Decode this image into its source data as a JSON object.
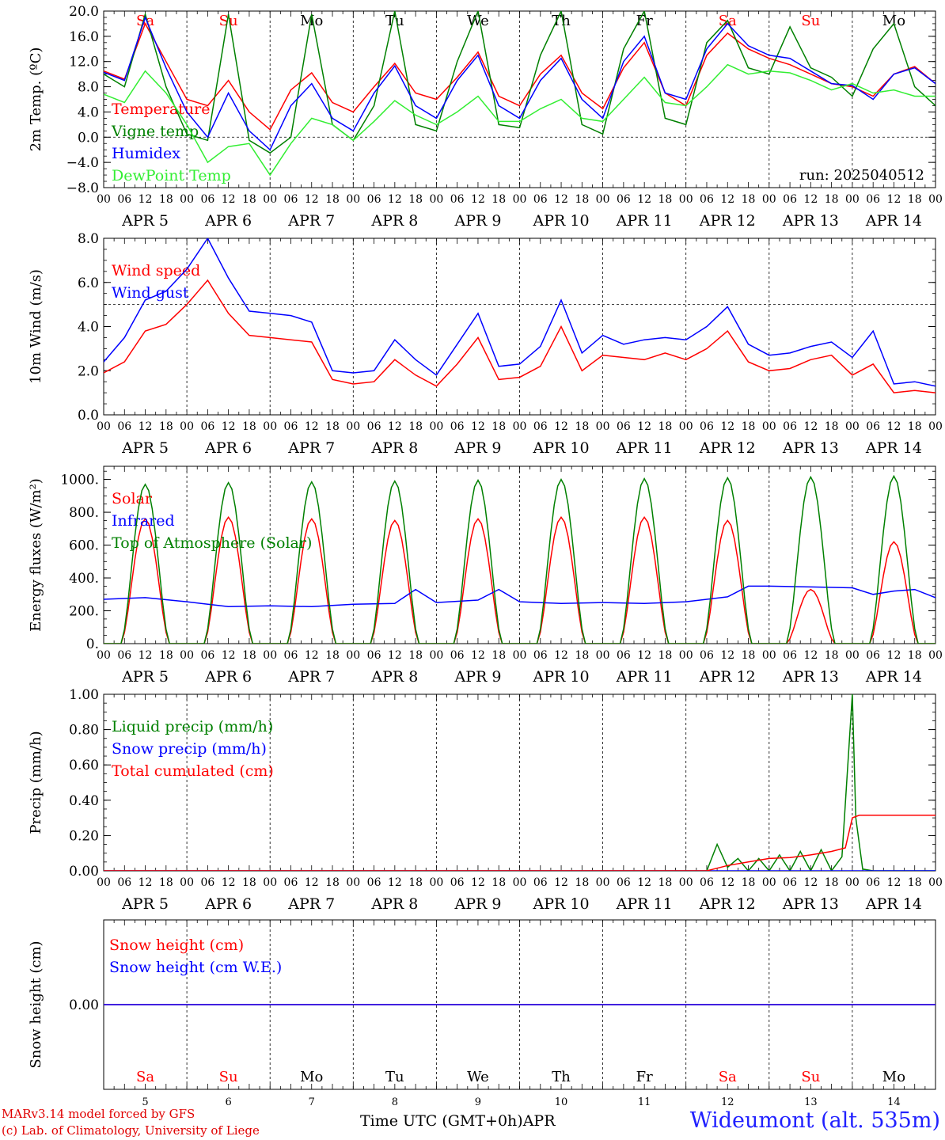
{
  "footer": {
    "credit_line1": "MARv3.14 model forced by GFS",
    "credit_line2": "(c) Lab. of Climatology, University of Liege",
    "station": "Wideumont (alt. 535m)",
    "x_axis_title": "Time UTC (GMT+0h)APR"
  },
  "colors": {
    "red": "#ff0000",
    "green": "#008000",
    "blue": "#0000ff",
    "lightgreen": "#33ee33",
    "black": "#000000"
  },
  "axis": {
    "hour_ticks": [
      "00",
      "06",
      "12",
      "18"
    ],
    "date_labels": [
      "APR  5",
      "APR  6",
      "APR  7",
      "APR  8",
      "APR  9",
      "APR 10",
      "APR 11",
      "APR 12",
      "APR 13",
      "APR 14"
    ],
    "weekday_labels": [
      "Sa",
      "Su",
      "Mo",
      "Tu",
      "We",
      "Th",
      "Fr",
      "Sa",
      "Su",
      "Mo"
    ],
    "weekend_flags": [
      true,
      true,
      false,
      false,
      false,
      false,
      false,
      true,
      true,
      false
    ],
    "day_numbers": [
      "5",
      "6",
      "7",
      "8",
      "9",
      "10",
      "11",
      "12",
      "13",
      "14"
    ],
    "days": 10
  },
  "chart_data": [
    {
      "type": "line",
      "title": "",
      "ylabel": "2m Temp. (ºC)",
      "ylim": [
        -8,
        20
      ],
      "yticks": [
        "20.0",
        "16.0",
        "12.0",
        "8.0",
        "4.0",
        "0.0",
        "−4.0",
        "−8.0"
      ],
      "ytick_values": [
        20,
        16,
        12,
        8,
        4,
        0,
        -4,
        -8
      ],
      "reference_line": 0,
      "annotation": "run: 2025040512",
      "x_unit": "hours since APR 5 00 UTC",
      "series": [
        {
          "name": "Temperature",
          "color": "#ff0000",
          "x": [
            0,
            6,
            12,
            18,
            24,
            30,
            36,
            42,
            48,
            54,
            60,
            66,
            72,
            78,
            84,
            90,
            96,
            102,
            108,
            114,
            120,
            126,
            132,
            138,
            144,
            150,
            156,
            162,
            168,
            174,
            180,
            186,
            192,
            198,
            204,
            210,
            216,
            222,
            228,
            234,
            240
          ],
          "y": [
            10.5,
            9.2,
            18.0,
            12.0,
            6.0,
            5.0,
            9.0,
            4.0,
            1.2,
            7.5,
            10.2,
            5.5,
            4.0,
            8.0,
            11.7,
            7.0,
            6.0,
            9.5,
            13.5,
            6.5,
            5.0,
            10.0,
            13.0,
            7.0,
            4.5,
            11.0,
            15.0,
            7.0,
            5.0,
            13.0,
            16.5,
            14.0,
            12.5,
            11.5,
            10.0,
            8.5,
            8.0,
            6.5,
            10.0,
            11.2,
            8.5
          ]
        },
        {
          "name": "Vigne temp",
          "color": "#008000",
          "x": [
            0,
            6,
            12,
            18,
            24,
            30,
            36,
            42,
            48,
            54,
            60,
            66,
            72,
            78,
            84,
            90,
            96,
            102,
            108,
            114,
            120,
            126,
            132,
            138,
            144,
            150,
            156,
            162,
            168,
            174,
            180,
            186,
            192,
            198,
            204,
            210,
            216,
            222,
            228,
            234,
            240
          ],
          "y": [
            10.0,
            8.0,
            19.5,
            8.0,
            0.5,
            -0.5,
            19.5,
            -0.5,
            -2.5,
            0.0,
            19.5,
            2.0,
            -0.5,
            5.0,
            20.0,
            2.0,
            1.0,
            12.0,
            20.0,
            2.0,
            1.5,
            13.0,
            20.0,
            2.0,
            0.5,
            14.0,
            20.0,
            3.0,
            2.0,
            15.0,
            18.5,
            11.0,
            10.0,
            17.5,
            11.0,
            9.5,
            6.5,
            14.0,
            18.0,
            8.0,
            5.0
          ]
        },
        {
          "name": "Humidex",
          "color": "#0000ff",
          "x": [
            0,
            6,
            12,
            18,
            24,
            30,
            36,
            42,
            48,
            54,
            60,
            66,
            72,
            78,
            84,
            90,
            96,
            102,
            108,
            114,
            120,
            126,
            132,
            138,
            144,
            150,
            156,
            162,
            168,
            174,
            180,
            186,
            192,
            198,
            204,
            210,
            216,
            222,
            228,
            234,
            240
          ],
          "y": [
            10.3,
            9.0,
            19.0,
            11.0,
            4.0,
            0.0,
            7.0,
            1.0,
            -2.0,
            5.0,
            8.5,
            3.0,
            1.0,
            7.0,
            11.3,
            5.0,
            3.0,
            9.0,
            13.0,
            5.0,
            3.0,
            9.0,
            12.5,
            6.0,
            3.0,
            12.0,
            16.0,
            7.0,
            6.0,
            14.0,
            18.0,
            14.5,
            13.0,
            12.5,
            10.5,
            8.5,
            8.2,
            6.0,
            10.0,
            11.0,
            8.5
          ]
        },
        {
          "name": "DewPoint Temp",
          "color": "#33ee33",
          "x": [
            0,
            6,
            12,
            18,
            24,
            30,
            36,
            42,
            48,
            54,
            60,
            66,
            72,
            78,
            84,
            90,
            96,
            102,
            108,
            114,
            120,
            126,
            132,
            138,
            144,
            150,
            156,
            162,
            168,
            174,
            180,
            186,
            192,
            198,
            204,
            210,
            216,
            222,
            228,
            234,
            240
          ],
          "y": [
            6.8,
            5.5,
            10.5,
            7.0,
            2.0,
            -4.0,
            -1.5,
            -1.0,
            -6.0,
            -1.0,
            3.0,
            2.0,
            -0.5,
            2.5,
            5.8,
            3.5,
            2.0,
            4.0,
            6.5,
            2.5,
            2.5,
            4.5,
            6.0,
            3.0,
            2.5,
            6.0,
            9.5,
            5.5,
            5.0,
            8.0,
            11.5,
            10.0,
            10.5,
            10.2,
            9.0,
            7.5,
            8.5,
            7.0,
            7.5,
            6.5,
            6.5
          ]
        }
      ]
    },
    {
      "type": "line",
      "title": "",
      "ylabel": "10m Wind (m/s)",
      "ylim": [
        0,
        8
      ],
      "yticks": [
        "8.0",
        "6.0",
        "4.0",
        "2.0",
        "0.0"
      ],
      "ytick_values": [
        8,
        6,
        4,
        2,
        0
      ],
      "reference_line": 5,
      "x_unit": "hours since APR 5 00 UTC",
      "series": [
        {
          "name": "Wind speed",
          "color": "#ff0000",
          "x": [
            0,
            6,
            12,
            18,
            24,
            30,
            36,
            42,
            48,
            54,
            60,
            66,
            72,
            78,
            84,
            90,
            96,
            102,
            108,
            114,
            120,
            126,
            132,
            138,
            144,
            150,
            156,
            162,
            168,
            174,
            180,
            186,
            192,
            198,
            204,
            210,
            216,
            222,
            228,
            234,
            240
          ],
          "y": [
            1.9,
            2.4,
            3.8,
            4.1,
            5.0,
            6.1,
            4.6,
            3.6,
            3.5,
            3.4,
            3.3,
            1.6,
            1.4,
            1.5,
            2.5,
            1.8,
            1.3,
            2.3,
            3.5,
            1.6,
            1.7,
            2.2,
            4.0,
            2.0,
            2.7,
            2.6,
            2.5,
            2.8,
            2.5,
            3.0,
            3.8,
            2.4,
            2.0,
            2.1,
            2.5,
            2.7,
            1.8,
            2.3,
            1.0,
            1.1,
            1.0
          ]
        },
        {
          "name": "Wind gust",
          "color": "#0000ff",
          "x": [
            0,
            6,
            12,
            18,
            24,
            30,
            36,
            42,
            48,
            54,
            60,
            66,
            72,
            78,
            84,
            90,
            96,
            102,
            108,
            114,
            120,
            126,
            132,
            138,
            144,
            150,
            156,
            162,
            168,
            174,
            180,
            186,
            192,
            198,
            204,
            210,
            216,
            222,
            228,
            234,
            240
          ],
          "y": [
            2.4,
            3.5,
            5.2,
            5.6,
            6.6,
            8.0,
            6.2,
            4.7,
            4.6,
            4.5,
            4.2,
            2.0,
            1.9,
            2.0,
            3.4,
            2.5,
            1.8,
            3.2,
            4.6,
            2.2,
            2.3,
            3.1,
            5.2,
            2.8,
            3.6,
            3.2,
            3.4,
            3.5,
            3.4,
            4.0,
            4.9,
            3.2,
            2.7,
            2.8,
            3.1,
            3.3,
            2.6,
            3.8,
            1.4,
            1.5,
            1.3
          ]
        }
      ]
    },
    {
      "type": "line",
      "title": "",
      "ylabel": "Energy fluxes (W/m²)",
      "ylim": [
        0,
        1080
      ],
      "yticks": [
        "1000.",
        "800.",
        "600.",
        "400.",
        "200.",
        "0."
      ],
      "ytick_values": [
        1000,
        800,
        600,
        400,
        200,
        0
      ],
      "x_unit": "hours since APR 5 00 UTC",
      "solar_daily_peaks": [
        760,
        770,
        760,
        750,
        760,
        770,
        770,
        750,
        330,
        620
      ],
      "toa_daily_peaks": [
        970,
        980,
        985,
        990,
        995,
        1000,
        1005,
        1010,
        1015,
        1020
      ],
      "series": [
        {
          "name": "Solar",
          "color": "#ff0000",
          "shape": "diurnal",
          "daily_peaks": [
            760,
            770,
            760,
            750,
            760,
            770,
            770,
            750,
            330,
            620
          ]
        },
        {
          "name": "Infrared",
          "color": "#0000ff",
          "x": [
            0,
            12,
            24,
            36,
            48,
            60,
            72,
            84,
            90,
            96,
            108,
            114,
            120,
            132,
            144,
            156,
            168,
            180,
            186,
            192,
            204,
            216,
            222,
            228,
            234,
            240
          ],
          "y": [
            270,
            280,
            255,
            225,
            230,
            225,
            240,
            245,
            330,
            250,
            265,
            330,
            255,
            245,
            250,
            245,
            255,
            285,
            350,
            350,
            345,
            340,
            300,
            320,
            330,
            280
          ]
        },
        {
          "name": "Top of Atmosphere (Solar)",
          "color": "#008000",
          "shape": "diurnal",
          "daily_peaks": [
            970,
            980,
            985,
            990,
            995,
            1000,
            1005,
            1010,
            1015,
            1020
          ]
        }
      ]
    },
    {
      "type": "line",
      "title": "",
      "ylabel": "Precip (mm/h)",
      "ylim": [
        0,
        1
      ],
      "yticks": [
        "1.00",
        "0.80",
        "0.60",
        "0.40",
        "0.20",
        "0.00"
      ],
      "ytick_values": [
        1,
        0.8,
        0.6,
        0.4,
        0.2,
        0
      ],
      "x_unit": "hours since APR 5 00 UTC",
      "series": [
        {
          "name": "Liquid precip (mm/h)",
          "color": "#008000",
          "x": [
            0,
            174,
            177,
            180,
            183,
            186,
            189,
            192,
            195,
            198,
            201,
            204,
            207,
            210,
            213,
            216,
            217,
            219,
            222,
            240
          ],
          "y": [
            0,
            0,
            0.15,
            0.02,
            0.07,
            0.0,
            0.07,
            0.0,
            0.09,
            0.0,
            0.11,
            0.0,
            0.12,
            0.0,
            0.08,
            1.0,
            0.3,
            0.01,
            0,
            0
          ]
        },
        {
          "name": "Snow precip (mm/h)",
          "color": "#0000ff",
          "x": [
            0,
            240
          ],
          "y": [
            0,
            0
          ]
        },
        {
          "name": "Total cumulated (cm)",
          "color": "#ff0000",
          "x": [
            0,
            174,
            180,
            186,
            192,
            198,
            204,
            210,
            214,
            216,
            218,
            240
          ],
          "y": [
            0,
            0,
            0.03,
            0.05,
            0.07,
            0.075,
            0.09,
            0.11,
            0.13,
            0.3,
            0.315,
            0.315
          ]
        }
      ]
    },
    {
      "type": "line",
      "title": "",
      "ylabel": "Snow height (cm)",
      "ylim": [
        -1,
        1
      ],
      "yticks": [
        "0.00"
      ],
      "ytick_values": [
        0
      ],
      "x_unit": "hours since APR 5 00 UTC",
      "series": [
        {
          "name": "Snow height (cm)",
          "color": "#ff0000",
          "x": [
            0,
            240
          ],
          "y": [
            0,
            0
          ]
        },
        {
          "name": "Snow height (cm W.E.)",
          "color": "#0000ff",
          "x": [
            0,
            240
          ],
          "y": [
            0,
            0
          ]
        }
      ]
    }
  ]
}
